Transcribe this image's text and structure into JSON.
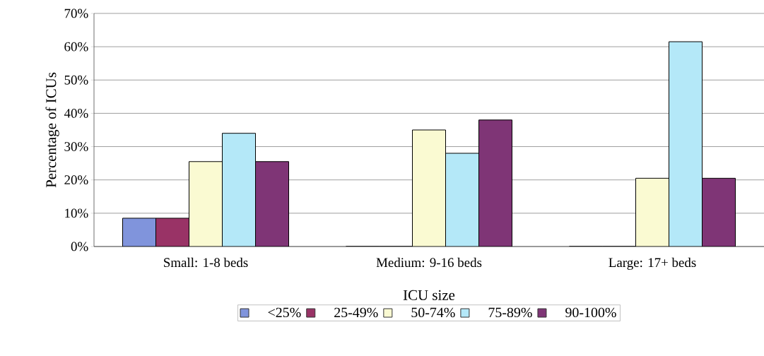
{
  "chart_data": {
    "type": "bar",
    "xlabel": "ICU size",
    "ylabel": "Percentage of ICUs",
    "categories": [
      "Small: 1-8 beds",
      "Medium: 9-16 beds",
      "Large: 17+ beds"
    ],
    "series": [
      {
        "name": "<25%",
        "color": "#8094dc",
        "values": [
          8.5,
          0,
          0
        ]
      },
      {
        "name": "25-49%",
        "color": "#993366",
        "values": [
          8.5,
          0,
          0
        ]
      },
      {
        "name": "50-74%",
        "color": "#fafad2",
        "values": [
          25.5,
          35,
          20.5
        ]
      },
      {
        "name": "75-89%",
        "color": "#b4e8f8",
        "values": [
          34,
          28,
          61.5
        ]
      },
      {
        "name": "90-100%",
        "color": "#7f3576",
        "values": [
          25.5,
          38,
          20.5
        ]
      }
    ],
    "ylim": [
      0,
      70
    ],
    "yticks": [
      {
        "value": 0,
        "label": "0%"
      },
      {
        "value": 10,
        "label": "10%"
      },
      {
        "value": 20,
        "label": "20%"
      },
      {
        "value": 30,
        "label": "30%"
      },
      {
        "value": 40,
        "label": "40%"
      },
      {
        "value": 50,
        "label": "50%"
      },
      {
        "value": 60,
        "label": "60%"
      },
      {
        "value": 70,
        "label": "70%"
      }
    ],
    "grid": "y",
    "legend": "bottom"
  }
}
